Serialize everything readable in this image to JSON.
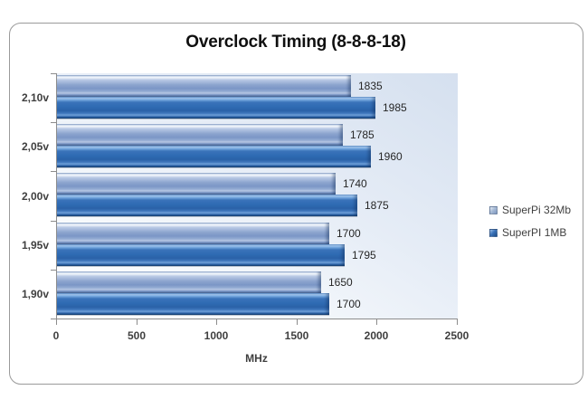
{
  "chart_data": {
    "type": "bar",
    "orientation": "horizontal",
    "title": "Overclock Timing (8-8-8-18)",
    "xlabel": "MHz",
    "xlim": [
      0,
      2500
    ],
    "xticks": [
      0,
      500,
      1000,
      1500,
      2000,
      2500
    ],
    "categories": [
      "2,10v",
      "2,05v",
      "2,00v",
      "1,95v",
      "1,90v"
    ],
    "category_order": "top-to-bottom",
    "series": [
      {
        "name": "SuperPi 32Mb",
        "color": "#8ba4d0",
        "values": [
          1835,
          1785,
          1740,
          1700,
          1650
        ]
      },
      {
        "name": "SuperPI 1MB",
        "color": "#2f6cb5",
        "values": [
          1985,
          1960,
          1875,
          1795,
          1700
        ]
      }
    ],
    "data_labels": true,
    "legend_position": "right",
    "grid": false
  },
  "style": {
    "background": "#ffffff",
    "frame_border": "#9a9a9a",
    "axis_color": "#8c8c8c",
    "axis_label_color": "#3f3f3f",
    "data_label_color": "#262626",
    "title_color": "#0f0f0f",
    "plot_bg_tint": "#d5e0ef"
  }
}
